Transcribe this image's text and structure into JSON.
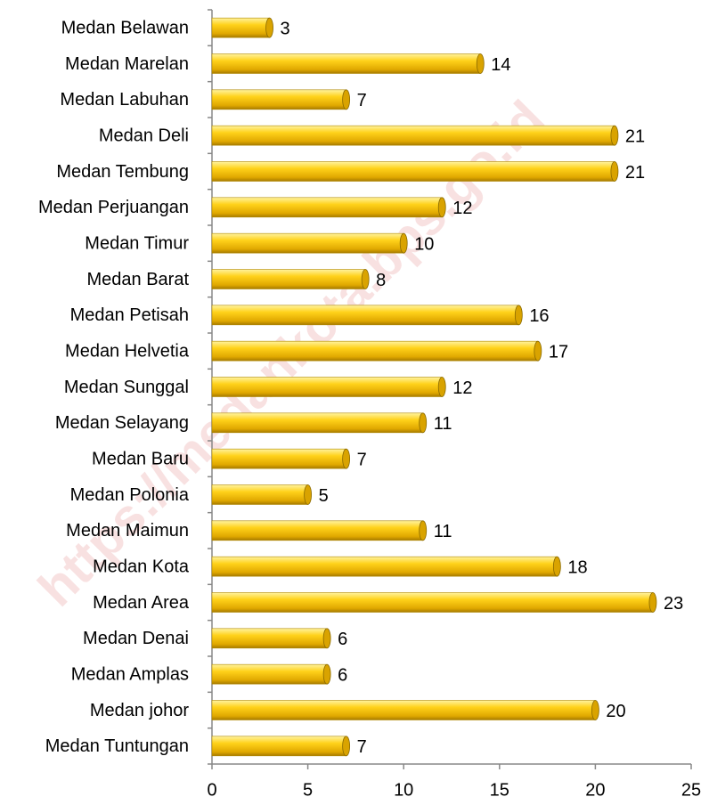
{
  "chart_data": {
    "type": "bar",
    "orientation": "horizontal",
    "watermark": "https://medankota.bps.go.id",
    "categories": [
      "Medan Belawan",
      "Medan Marelan",
      "Medan Labuhan",
      "Medan Deli",
      "Medan Tembung",
      "Medan Perjuangan",
      "Medan Timur",
      "Medan Barat",
      "Medan Petisah",
      "Medan Helvetia",
      "Medan Sunggal",
      "Medan Selayang",
      "Medan Baru",
      "Medan Polonia",
      "Medan Maimun",
      "Medan Kota",
      "Medan Area",
      "Medan Denai",
      "Medan Amplas",
      "Medan johor",
      "Medan Tuntungan"
    ],
    "values": [
      3,
      14,
      7,
      21,
      21,
      12,
      10,
      8,
      16,
      17,
      12,
      11,
      7,
      5,
      11,
      18,
      23,
      6,
      6,
      20,
      7
    ],
    "color": "#f2c000",
    "xlim": [
      0,
      25
    ],
    "xticks": [
      0,
      5,
      10,
      15,
      20,
      25
    ],
    "grid": false
  }
}
